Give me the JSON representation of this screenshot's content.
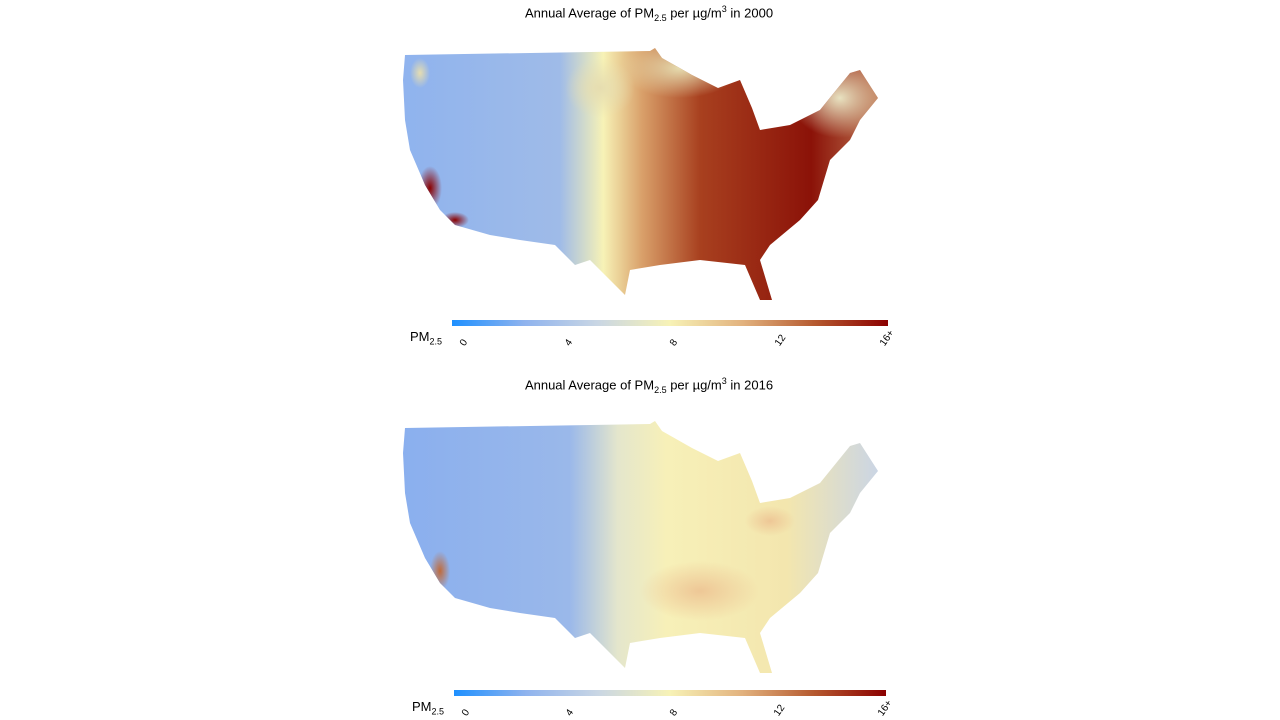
{
  "colormap": [
    "#1e90ff",
    "#8fb3ee",
    "#c9d6e4",
    "#f7f2b6",
    "#e2b27e",
    "#b5592f",
    "#8b0000"
  ],
  "panels": [
    {
      "year": "2000",
      "title": {
        "pre": "Annual Average of PM",
        "sub": "2.5",
        "mid": " per µg/m",
        "sup": "3",
        "post": " in 2000"
      },
      "legend": {
        "label": "PM",
        "sub": "2.5",
        "ticks": [
          "0",
          "4",
          "8",
          "12",
          "16+"
        ],
        "range": [
          0,
          16
        ]
      }
    },
    {
      "year": "2016",
      "title": {
        "pre": "Annual Average of PM",
        "sub": "2.5",
        "mid": " per µg/m",
        "sup": "3",
        "post": " in 2016"
      },
      "legend": {
        "label": "PM",
        "sub": "2.5",
        "ticks": [
          "0",
          "4",
          "8",
          "12",
          "16+"
        ],
        "range": [
          0,
          16
        ]
      }
    }
  ]
}
